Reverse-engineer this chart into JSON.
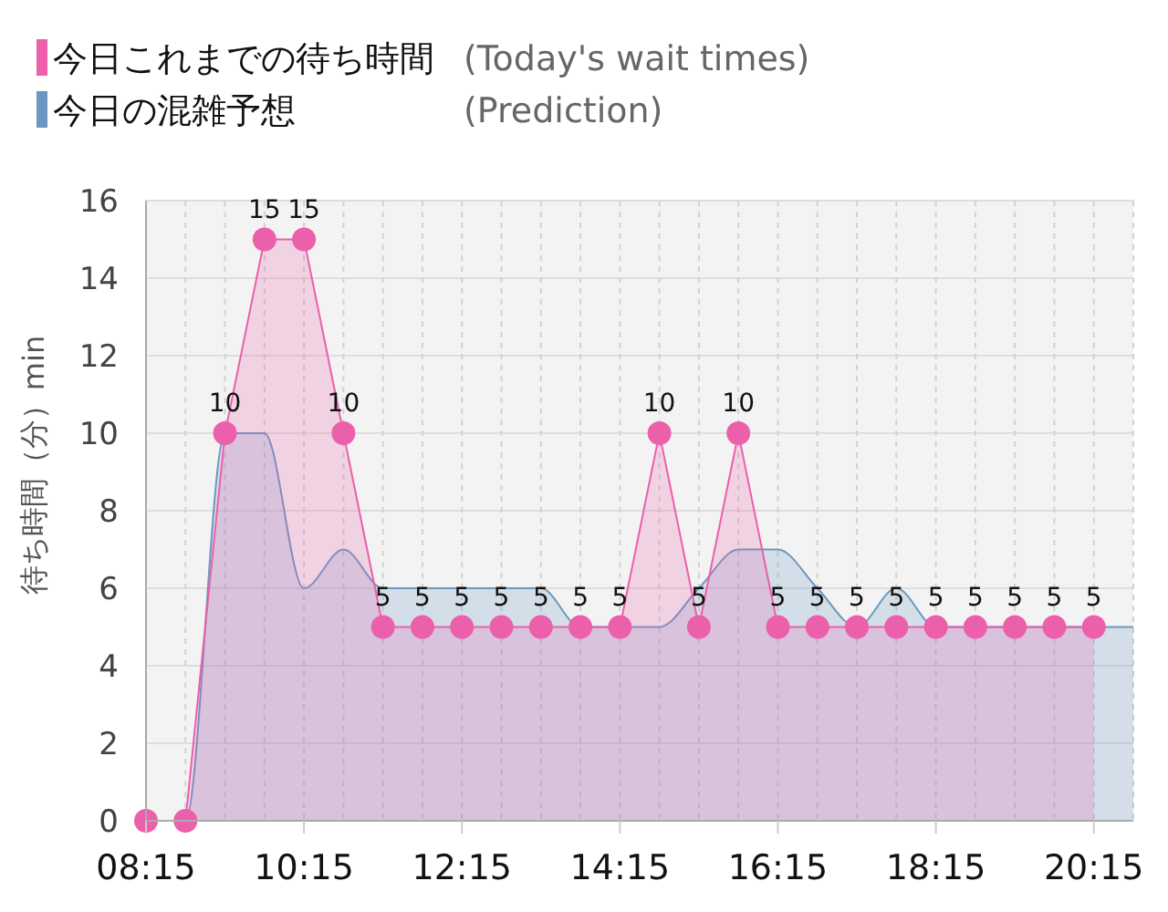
{
  "chart_data": {
    "type": "area",
    "ylabel": "待ち時間（分）min",
    "xlim": [
      8.25,
      20.75
    ],
    "xticks": [
      {
        "value": 8.25,
        "label": "08:15"
      },
      {
        "value": 8.75,
        "label": null
      },
      {
        "value": 9.25,
        "label": null
      },
      {
        "value": 9.75,
        "label": null
      },
      {
        "value": 10.25,
        "label": "10:15"
      },
      {
        "value": 10.75,
        "label": null
      },
      {
        "value": 11.25,
        "label": null
      },
      {
        "value": 11.75,
        "label": null
      },
      {
        "value": 12.25,
        "label": "12:15"
      },
      {
        "value": 12.75,
        "label": null
      },
      {
        "value": 13.25,
        "label": null
      },
      {
        "value": 13.75,
        "label": null
      },
      {
        "value": 14.25,
        "label": "14:15"
      },
      {
        "value": 14.75,
        "label": null
      },
      {
        "value": 15.25,
        "label": null
      },
      {
        "value": 15.75,
        "label": null
      },
      {
        "value": 16.25,
        "label": "16:15"
      },
      {
        "value": 16.75,
        "label": null
      },
      {
        "value": 17.25,
        "label": null
      },
      {
        "value": 17.75,
        "label": null
      },
      {
        "value": 18.25,
        "label": "18:15"
      },
      {
        "value": 18.75,
        "label": null
      },
      {
        "value": 19.25,
        "label": null
      },
      {
        "value": 19.75,
        "label": null
      },
      {
        "value": 20.25,
        "label": "20:15"
      },
      {
        "value": 20.75,
        "label": null
      }
    ],
    "ylim": [
      0,
      16
    ],
    "yticks": [
      0,
      2,
      4,
      6,
      8,
      10,
      12,
      14,
      16
    ],
    "grid": true,
    "legend": "top left",
    "marker": "circle",
    "series": [
      {
        "name": "今日これまでの待ち時間 (Today's wait times)",
        "color": "#eb5fab",
        "x": [
          8.25,
          8.75,
          9.25,
          9.75,
          10.25,
          10.75,
          11.25,
          11.75,
          12.25,
          12.75,
          13.25,
          13.75,
          14.25,
          14.75,
          15.25,
          15.75,
          16.25,
          16.75,
          17.25,
          17.75,
          18.25,
          18.75,
          19.25,
          19.75,
          20.25
        ],
        "values": [
          0,
          0,
          10,
          15,
          15,
          10,
          5,
          5,
          5,
          5,
          5,
          5,
          5,
          10,
          5,
          10,
          5,
          5,
          5,
          5,
          5,
          5,
          5,
          5,
          5
        ],
        "value_labels": [
          null,
          null,
          "10",
          "15",
          "15",
          "10",
          "5",
          "5",
          "5",
          "5",
          "5",
          "5",
          "5",
          "10",
          "5",
          "10",
          "5",
          "5",
          "5",
          "5",
          "5",
          "5",
          "5",
          "5",
          "5"
        ]
      },
      {
        "name": "今日の混雑予想 (Prediction)",
        "color": "#6a98c2",
        "marker": "none",
        "x": [
          8.25,
          8.75,
          9.25,
          9.75,
          10.25,
          10.75,
          11.25,
          11.75,
          12.25,
          12.75,
          13.25,
          13.75,
          14.25,
          14.75,
          15.25,
          15.75,
          16.25,
          16.75,
          17.25,
          17.75,
          18.25,
          18.75,
          19.25,
          19.75,
          20.25,
          20.75
        ],
        "values": [
          0,
          0,
          10,
          10,
          6,
          7,
          6,
          6,
          6,
          6,
          6,
          5,
          5,
          5,
          6,
          7,
          7,
          6,
          5,
          6,
          5,
          5,
          5,
          5,
          5,
          5
        ]
      }
    ]
  }
}
